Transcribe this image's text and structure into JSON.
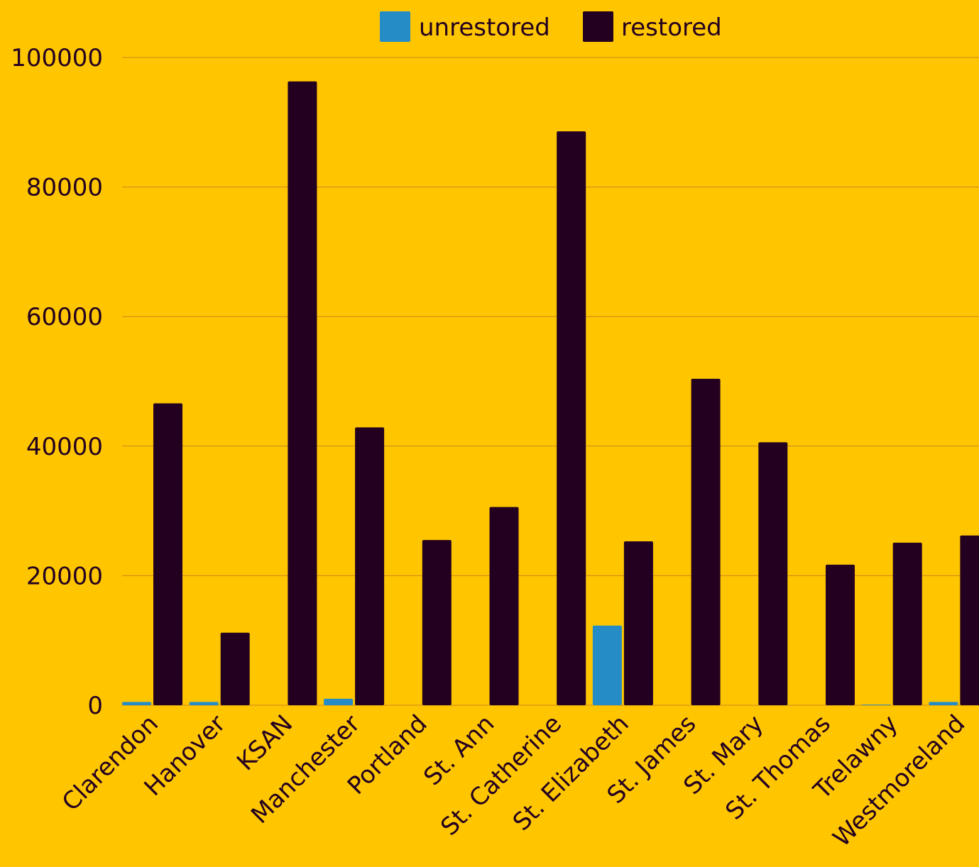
{
  "chart_data": {
    "type": "bar",
    "categories": [
      "Clarendon",
      "Hanover",
      "KSAN",
      "Manchester",
      "Portland",
      "St. Ann",
      "St. Catherine",
      "St. Elizabeth",
      "St. James",
      "St. Mary",
      "St. Thomas",
      "Trelawny",
      "Westmoreland"
    ],
    "series": [
      {
        "name": "unrestored",
        "color": "#258CC6",
        "values": [
          500,
          500,
          0,
          1000,
          0,
          0,
          0,
          12300,
          0,
          0,
          0,
          100,
          500
        ]
      },
      {
        "name": "restored",
        "color": "#230020",
        "values": [
          46600,
          11200,
          96300,
          42900,
          25500,
          30600,
          88600,
          25300,
          50400,
          40600,
          21700,
          25100,
          26200
        ]
      }
    ],
    "ylim": [
      0,
      100000
    ],
    "yticks": [
      "0",
      "20000",
      "40000",
      "60000",
      "80000",
      "100000"
    ],
    "grid": true,
    "legend_position": "top-center",
    "colors": {
      "background": "#FFC600",
      "grid": "#C8861E",
      "text": "#230020"
    }
  }
}
